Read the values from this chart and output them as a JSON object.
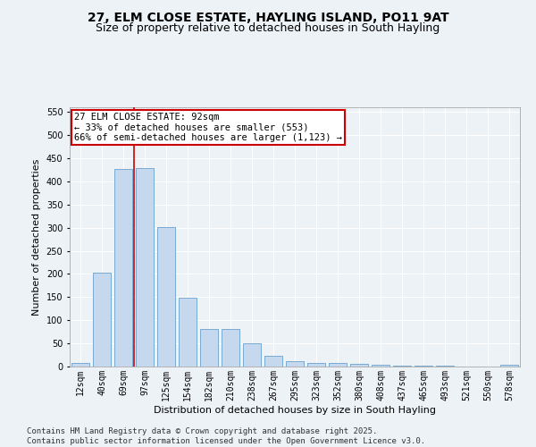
{
  "title": "27, ELM CLOSE ESTATE, HAYLING ISLAND, PO11 9AT",
  "subtitle": "Size of property relative to detached houses in South Hayling",
  "xlabel": "Distribution of detached houses by size in South Hayling",
  "ylabel": "Number of detached properties",
  "categories": [
    "12sqm",
    "40sqm",
    "69sqm",
    "97sqm",
    "125sqm",
    "154sqm",
    "182sqm",
    "210sqm",
    "238sqm",
    "267sqm",
    "295sqm",
    "323sqm",
    "352sqm",
    "380sqm",
    "408sqm",
    "437sqm",
    "465sqm",
    "493sqm",
    "521sqm",
    "550sqm",
    "578sqm"
  ],
  "values": [
    8,
    202,
    427,
    428,
    302,
    148,
    82,
    82,
    50,
    23,
    11,
    8,
    8,
    5,
    3,
    2,
    1,
    1,
    0,
    0,
    3
  ],
  "bar_color": "#c5d8ed",
  "bar_edge_color": "#6aa0cc",
  "background_color": "#edf2f7",
  "grid_color": "#ffffff",
  "annotation_line1": "27 ELM CLOSE ESTATE: 92sqm",
  "annotation_line2": "← 33% of detached houses are smaller (553)",
  "annotation_line3": "66% of semi-detached houses are larger (1,123) →",
  "annotation_box_color": "#ffffff",
  "annotation_box_edge_color": "#cc0000",
  "vline_color": "#cc0000",
  "vline_position": 2.5,
  "ylim": [
    0,
    560
  ],
  "yticks": [
    0,
    50,
    100,
    150,
    200,
    250,
    300,
    350,
    400,
    450,
    500,
    550
  ],
  "footer_text": "Contains HM Land Registry data © Crown copyright and database right 2025.\nContains public sector information licensed under the Open Government Licence v3.0.",
  "title_fontsize": 10,
  "subtitle_fontsize": 9,
  "axis_label_fontsize": 8,
  "tick_fontsize": 7,
  "annotation_fontsize": 7.5,
  "footer_fontsize": 6.5
}
